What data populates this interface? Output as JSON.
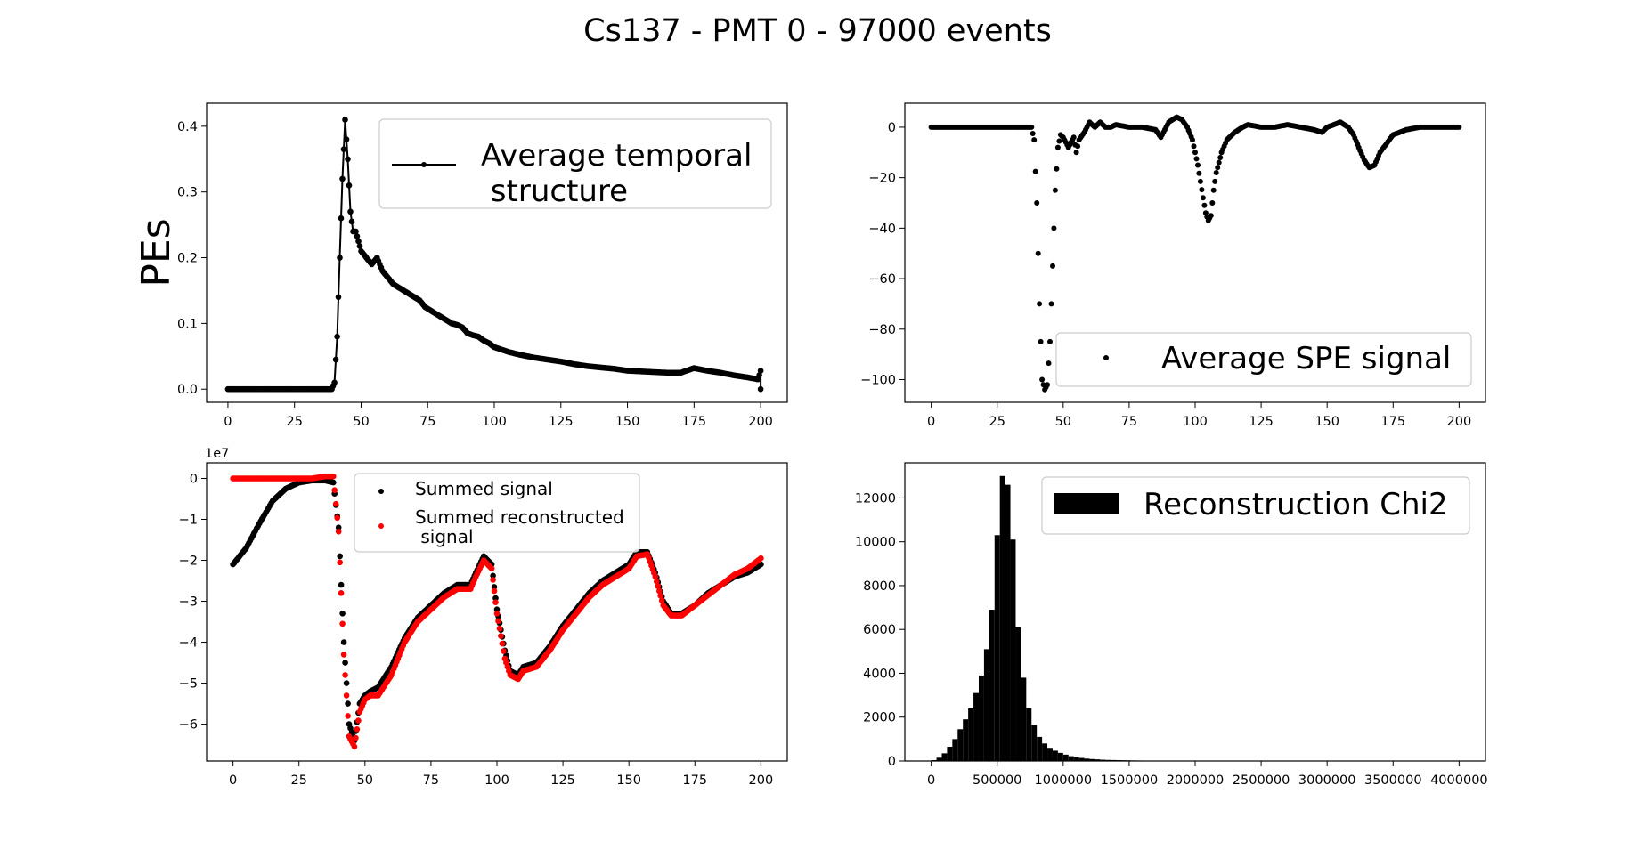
{
  "figure_title": "Cs137 - PMT 0 - 97000 events",
  "colors": {
    "black": "#000000",
    "red": "#ff0000",
    "legend_border": "#cccccc"
  },
  "chart_data": [
    {
      "id": "temporal",
      "type": "line",
      "ylabel": "PEs",
      "xlim": [
        -8,
        210
      ],
      "ylim": [
        -0.02,
        0.435
      ],
      "x_ticks": [
        0,
        25,
        50,
        75,
        100,
        125,
        150,
        175,
        200
      ],
      "x_tick_labels": [
        "0",
        "25",
        "50",
        "75",
        "100",
        "125",
        "150",
        "175",
        "200"
      ],
      "y_ticks": [
        0.0,
        0.1,
        0.2,
        0.3,
        0.4
      ],
      "y_tick_labels": [
        "0.0",
        "0.1",
        "0.2",
        "0.3",
        "0.4"
      ],
      "legend": {
        "position": "upper-right",
        "entries": [
          "Average temporal",
          " structure"
        ]
      },
      "series": [
        {
          "name": "Average temporal structure",
          "style": "line-with-markers",
          "color": "#000000",
          "x": [
            0,
            5,
            10,
            15,
            20,
            25,
            30,
            35,
            39,
            40,
            41,
            42,
            43,
            44,
            45,
            46,
            47,
            48,
            50,
            52,
            54,
            56,
            58,
            60,
            62,
            64,
            66,
            68,
            70,
            72,
            74,
            76,
            78,
            80,
            82,
            84,
            86,
            88,
            90,
            92,
            94,
            96,
            98,
            100,
            105,
            110,
            115,
            120,
            125,
            130,
            135,
            140,
            145,
            150,
            155,
            160,
            165,
            170,
            175,
            180,
            185,
            190,
            195,
            199,
            200,
            200
          ],
          "y": [
            0,
            0,
            0,
            0,
            0,
            0,
            0,
            0,
            0,
            0.01,
            0.08,
            0.2,
            0.32,
            0.41,
            0.35,
            0.27,
            0.24,
            0.24,
            0.21,
            0.2,
            0.19,
            0.2,
            0.18,
            0.17,
            0.16,
            0.155,
            0.15,
            0.145,
            0.14,
            0.135,
            0.125,
            0.12,
            0.115,
            0.11,
            0.105,
            0.1,
            0.098,
            0.094,
            0.085,
            0.082,
            0.08,
            0.074,
            0.07,
            0.064,
            0.057,
            0.052,
            0.048,
            0.045,
            0.042,
            0.038,
            0.035,
            0.033,
            0.031,
            0.028,
            0.027,
            0.026,
            0.025,
            0.025,
            0.032,
            0.028,
            0.025,
            0.021,
            0.018,
            0.015,
            0.028,
            0.0
          ]
        }
      ]
    },
    {
      "id": "spe",
      "type": "scatter",
      "ylabel": "",
      "xlim": [
        -10,
        210
      ],
      "ylim": [
        -109,
        9.5
      ],
      "x_ticks": [
        0,
        25,
        50,
        75,
        100,
        125,
        150,
        175,
        200
      ],
      "x_tick_labels": [
        "0",
        "25",
        "50",
        "75",
        "100",
        "125",
        "150",
        "175",
        "200"
      ],
      "y_ticks": [
        0,
        -20,
        -40,
        -60,
        -80,
        -100
      ],
      "y_tick_labels": [
        "0",
        "−20",
        "−40",
        "−60",
        "−80",
        "−100"
      ],
      "legend": {
        "position": "lower-right",
        "entries": [
          "Average SPE signal"
        ]
      },
      "series": [
        {
          "name": "Average SPE signal",
          "style": "markers",
          "color": "#000000",
          "x": [
            0,
            5,
            10,
            15,
            20,
            25,
            30,
            35,
            38,
            39,
            40,
            41,
            42,
            43,
            44,
            45,
            46,
            47,
            48,
            49,
            50,
            52,
            54,
            55,
            56,
            58,
            60,
            62,
            64,
            66,
            68,
            70,
            75,
            80,
            85,
            87,
            88,
            90,
            93,
            95,
            97,
            99,
            101,
            103,
            104,
            105,
            106,
            107,
            108,
            110,
            112,
            115,
            118,
            120,
            125,
            130,
            135,
            140,
            145,
            148,
            150,
            155,
            158,
            160,
            162,
            164,
            166,
            168,
            170,
            175,
            180,
            185,
            190,
            195,
            200
          ],
          "y": [
            0,
            0,
            0,
            0,
            0,
            0,
            0,
            0,
            0,
            -5,
            -30,
            -70,
            -100,
            -104,
            -102,
            -85,
            -55,
            -25,
            -8,
            -3,
            -4,
            -8,
            -4,
            -10,
            -5,
            -2,
            2,
            0,
            2,
            0,
            0,
            1,
            0,
            0,
            -1,
            -4,
            -2,
            2,
            4,
            3,
            0,
            -5,
            -15,
            -28,
            -34,
            -37,
            -35,
            -25,
            -18,
            -10,
            -5,
            -2,
            0,
            1,
            0,
            0,
            1,
            0,
            -1,
            -2,
            0,
            2,
            0,
            -3,
            -8,
            -13,
            -16,
            -15,
            -10,
            -3,
            -1,
            0,
            0,
            0,
            0
          ]
        }
      ]
    },
    {
      "id": "summed",
      "type": "scatter",
      "ylabel": "",
      "offset_label": "1e7",
      "xlim": [
        -10,
        210
      ],
      "ylim": [
        -6.9,
        0.38
      ],
      "x_ticks": [
        0,
        25,
        50,
        75,
        100,
        125,
        150,
        175,
        200
      ],
      "x_tick_labels": [
        "0",
        "25",
        "50",
        "75",
        "100",
        "125",
        "150",
        "175",
        "200"
      ],
      "y_ticks": [
        0,
        -1,
        -2,
        -3,
        -4,
        -5,
        -6
      ],
      "y_tick_labels": [
        "0",
        "−1",
        "−2",
        "−3",
        "−4",
        "−5",
        "−6"
      ],
      "legend": {
        "position": "upper-center",
        "entries": [
          "Summed signal",
          "Summed reconstructed",
          " signal"
        ]
      },
      "series": [
        {
          "name": "Summed signal",
          "style": "markers",
          "color": "#000000",
          "x": [
            0,
            5,
            10,
            15,
            20,
            25,
            30,
            35,
            38,
            40,
            42,
            44,
            46,
            48,
            50,
            52,
            55,
            60,
            65,
            70,
            75,
            80,
            85,
            90,
            92,
            95,
            98,
            100,
            103,
            105,
            108,
            110,
            115,
            120,
            125,
            130,
            135,
            140,
            145,
            150,
            153,
            157,
            160,
            163,
            166,
            170,
            175,
            180,
            185,
            190,
            195,
            200
          ],
          "y": [
            -2.1,
            -1.7,
            -1.1,
            -0.55,
            -0.25,
            -0.1,
            -0.05,
            -0.05,
            -0.1,
            -1.2,
            -4.0,
            -6.0,
            -6.4,
            -5.5,
            -5.3,
            -5.2,
            -5.1,
            -4.6,
            -3.9,
            -3.4,
            -3.1,
            -2.8,
            -2.6,
            -2.6,
            -2.3,
            -1.9,
            -2.1,
            -3.2,
            -4.2,
            -4.7,
            -4.8,
            -4.6,
            -4.5,
            -4.1,
            -3.6,
            -3.2,
            -2.8,
            -2.5,
            -2.3,
            -2.1,
            -1.8,
            -1.8,
            -2.3,
            -3.0,
            -3.3,
            -3.3,
            -3.1,
            -2.8,
            -2.6,
            -2.4,
            -2.3,
            -2.1
          ]
        },
        {
          "name": "Summed reconstructed\n signal",
          "style": "markers",
          "color": "#ff0000",
          "x": [
            0,
            5,
            10,
            15,
            20,
            25,
            30,
            35,
            38,
            40,
            42,
            44,
            46,
            48,
            50,
            52,
            55,
            60,
            65,
            70,
            75,
            80,
            85,
            90,
            92,
            95,
            98,
            100,
            103,
            105,
            108,
            110,
            115,
            120,
            125,
            130,
            135,
            140,
            145,
            150,
            153,
            157,
            160,
            163,
            166,
            170,
            175,
            180,
            185,
            190,
            195,
            200
          ],
          "y": [
            0.0,
            0.0,
            0.0,
            0.0,
            0.0,
            0.0,
            0.0,
            0.05,
            0.05,
            -1.3,
            -4.3,
            -6.3,
            -6.55,
            -5.7,
            -5.4,
            -5.3,
            -5.3,
            -4.8,
            -4.0,
            -3.5,
            -3.2,
            -2.9,
            -2.7,
            -2.7,
            -2.4,
            -2.0,
            -2.2,
            -3.3,
            -4.4,
            -4.8,
            -4.9,
            -4.7,
            -4.6,
            -4.2,
            -3.7,
            -3.3,
            -2.9,
            -2.6,
            -2.4,
            -2.2,
            -1.9,
            -1.85,
            -2.4,
            -3.1,
            -3.35,
            -3.35,
            -3.1,
            -2.85,
            -2.6,
            -2.35,
            -2.2,
            -1.95
          ]
        }
      ]
    },
    {
      "id": "chi2",
      "type": "bar",
      "ylabel": "",
      "xlim": [
        -200000,
        4200000
      ],
      "ylim": [
        0,
        13600
      ],
      "x_ticks": [
        0,
        500000,
        1000000,
        1500000,
        2000000,
        2500000,
        3000000,
        3500000,
        4000000
      ],
      "x_tick_labels": [
        "0",
        "500000",
        "1000000",
        "1500000",
        "2000000",
        "2500000",
        "3000000",
        "3500000",
        "4000000"
      ],
      "y_ticks": [
        0,
        2000,
        4000,
        6000,
        8000,
        10000,
        12000
      ],
      "y_tick_labels": [
        "0",
        "2000",
        "4000",
        "6000",
        "8000",
        "10000",
        "12000"
      ],
      "legend": {
        "position": "upper-right",
        "entries": [
          "Reconstruction Chi2"
        ]
      },
      "bin_width": 40000,
      "series": [
        {
          "name": "Reconstruction Chi2",
          "style": "histogram",
          "color": "#000000",
          "bin_starts": [
            0,
            40000,
            80000,
            120000,
            160000,
            200000,
            240000,
            280000,
            320000,
            360000,
            400000,
            440000,
            480000,
            520000,
            560000,
            600000,
            640000,
            680000,
            720000,
            760000,
            800000,
            840000,
            880000,
            920000,
            960000,
            1000000,
            1040000,
            1080000,
            1120000,
            1160000,
            1200000,
            1240000,
            1280000,
            1320000,
            1360000,
            1400000,
            1440000,
            1480000,
            1520000,
            1560000,
            1600000,
            1640000,
            1680000,
            1720000,
            1760000,
            1800000,
            1840000,
            1880000,
            1920000,
            1960000,
            2000000,
            2040000,
            2080000,
            2120000,
            2160000,
            2200000,
            2240000,
            2280000,
            2320000,
            2360000,
            2400000,
            2440000,
            2480000,
            2520000
          ],
          "counts": [
            40,
            150,
            350,
            650,
            1000,
            1450,
            1900,
            2400,
            3100,
            3900,
            5100,
            6900,
            10300,
            13000,
            12600,
            10100,
            6100,
            3800,
            2400,
            1650,
            1100,
            800,
            600,
            470,
            370,
            290,
            220,
            170,
            140,
            110,
            90,
            75,
            60,
            50,
            45,
            40,
            35,
            30,
            25,
            22,
            20,
            18,
            16,
            14,
            12,
            11,
            10,
            9,
            8,
            7,
            7,
            6,
            6,
            5,
            5,
            4,
            4,
            4,
            3,
            3,
            3,
            2,
            2,
            2
          ]
        }
      ]
    }
  ]
}
